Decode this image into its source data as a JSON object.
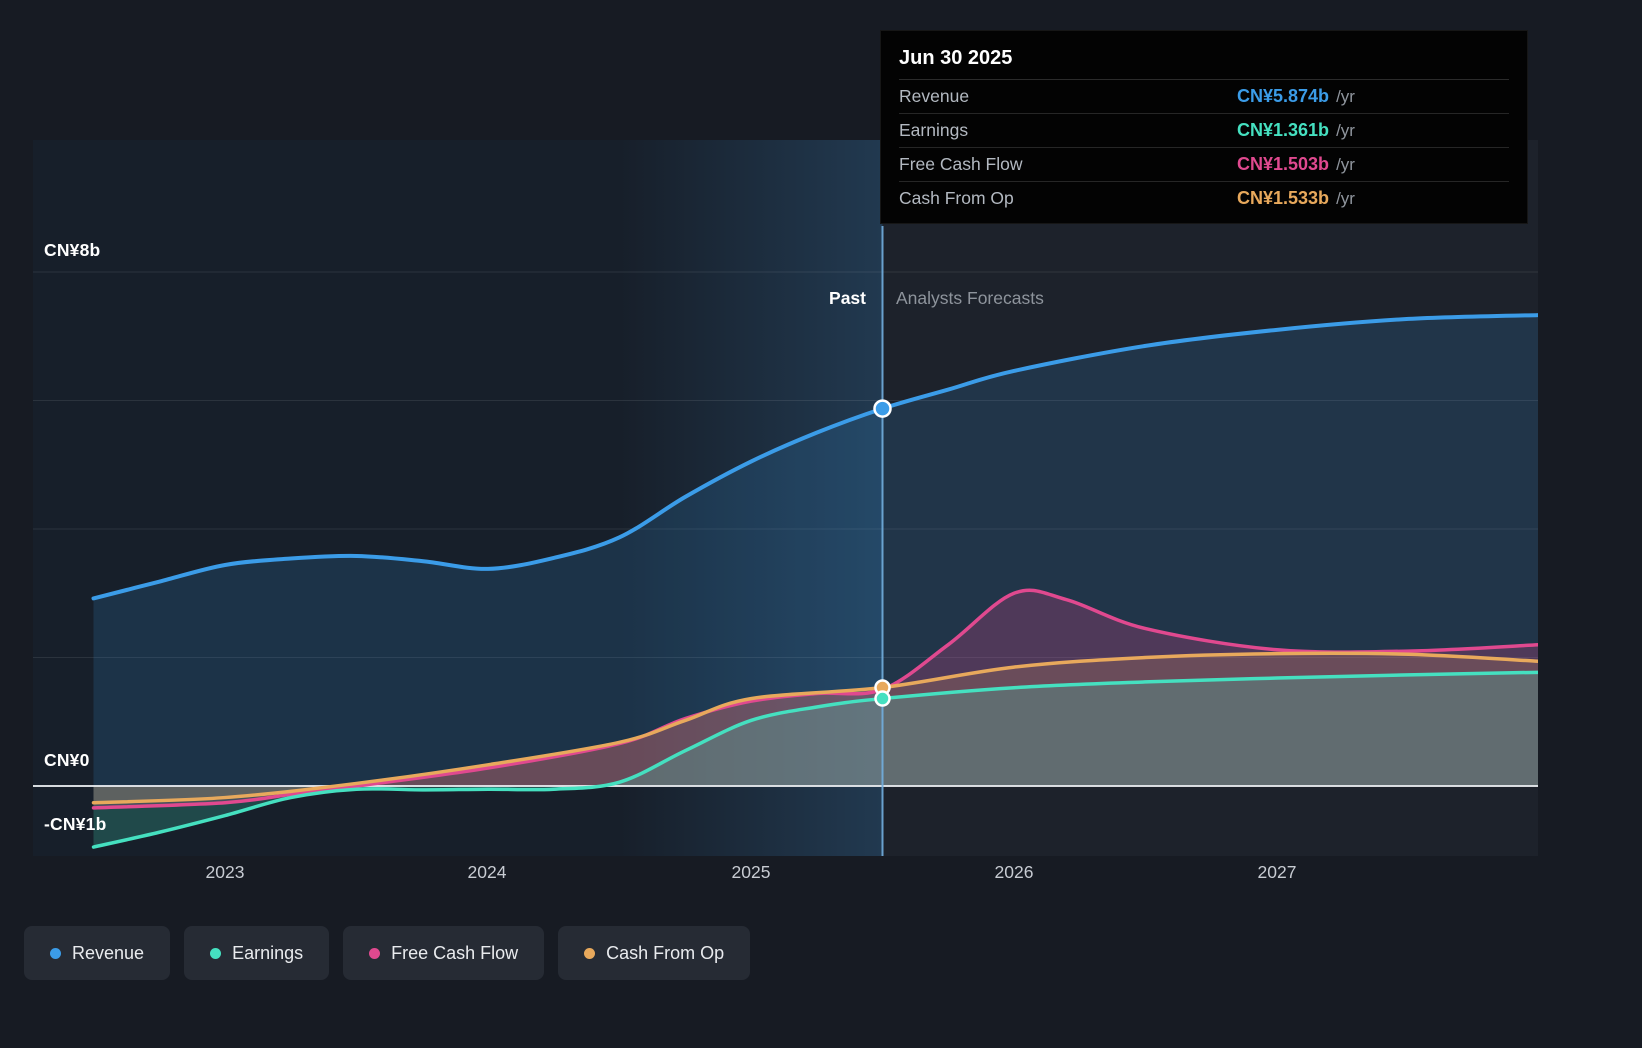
{
  "tooltip": {
    "date": "Jun 30 2025",
    "rows": [
      {
        "label": "Revenue",
        "value": "CN¥5.874b",
        "suffix": "/yr",
        "color": "#3b9ce8"
      },
      {
        "label": "Earnings",
        "value": "CN¥1.361b",
        "suffix": "/yr",
        "color": "#45e0c0"
      },
      {
        "label": "Free Cash Flow",
        "value": "CN¥1.503b",
        "suffix": "/yr",
        "color": "#e0498f"
      },
      {
        "label": "Cash From Op",
        "value": "CN¥1.533b",
        "suffix": "/yr",
        "color": "#e8a95c"
      }
    ]
  },
  "labels": {
    "past": "Past",
    "forecast": "Analysts Forecasts"
  },
  "y_axis": [
    {
      "text": "CN¥8b",
      "value": 8
    },
    {
      "text": "CN¥0",
      "value": 0
    },
    {
      "text": "-CN¥1b",
      "value": -1
    }
  ],
  "x_axis": [
    {
      "text": "2023"
    },
    {
      "text": "2024"
    },
    {
      "text": "2025"
    },
    {
      "text": "2026"
    },
    {
      "text": "2027"
    }
  ],
  "legend": [
    {
      "label": "Revenue",
      "color": "#3b9ce8"
    },
    {
      "label": "Earnings",
      "color": "#45e0c0"
    },
    {
      "label": "Free Cash Flow",
      "color": "#e0498f"
    },
    {
      "label": "Cash From Op",
      "color": "#e8a95c"
    }
  ],
  "chart_data": {
    "type": "line",
    "x_unit": "year",
    "currency": "CN¥ billions",
    "xlim": [
      2022.45,
      2028.0
    ],
    "ylim": [
      -1.35,
      8.7
    ],
    "x_ticks": [
      2023,
      2024,
      2025,
      2026,
      2027
    ],
    "gridlines_y": [
      8,
      6,
      4,
      2
    ],
    "zero_line": 0,
    "divider_x": 2025.5,
    "past_band_start": 2024.5,
    "legend_position": "bottom-left",
    "series": [
      {
        "name": "Revenue",
        "color": "#3b9ce8",
        "fill_opacity": 0.16,
        "width": 4,
        "points": [
          [
            2022.5,
            2.92
          ],
          [
            2022.75,
            3.18
          ],
          [
            2023.0,
            3.44
          ],
          [
            2023.25,
            3.54
          ],
          [
            2023.5,
            3.58
          ],
          [
            2023.75,
            3.5
          ],
          [
            2024.0,
            3.38
          ],
          [
            2024.25,
            3.55
          ],
          [
            2024.5,
            3.87
          ],
          [
            2024.75,
            4.5
          ],
          [
            2025.0,
            5.05
          ],
          [
            2025.25,
            5.5
          ],
          [
            2025.5,
            5.874
          ],
          [
            2025.75,
            6.17
          ],
          [
            2026.0,
            6.46
          ],
          [
            2026.5,
            6.85
          ],
          [
            2027.0,
            7.1
          ],
          [
            2027.5,
            7.27
          ],
          [
            2028.0,
            7.33
          ]
        ]
      },
      {
        "name": "Free Cash Flow",
        "color": "#e0498f",
        "fill_opacity": 0.24,
        "width": 3.5,
        "points": [
          [
            2022.5,
            -0.34
          ],
          [
            2023.0,
            -0.26
          ],
          [
            2023.25,
            -0.13
          ],
          [
            2023.5,
            0.0
          ],
          [
            2024.0,
            0.28
          ],
          [
            2024.5,
            0.66
          ],
          [
            2024.75,
            1.05
          ],
          [
            2025.0,
            1.32
          ],
          [
            2025.25,
            1.44
          ],
          [
            2025.5,
            1.503
          ],
          [
            2025.75,
            2.2
          ],
          [
            2026.0,
            3.0
          ],
          [
            2026.2,
            2.9
          ],
          [
            2026.5,
            2.45
          ],
          [
            2027.0,
            2.12
          ],
          [
            2027.5,
            2.1
          ],
          [
            2028.0,
            2.2
          ]
        ]
      },
      {
        "name": "Cash From Op",
        "color": "#e8a95c",
        "fill_opacity": 0.18,
        "width": 3.5,
        "points": [
          [
            2022.5,
            -0.26
          ],
          [
            2023.0,
            -0.18
          ],
          [
            2023.5,
            0.04
          ],
          [
            2024.0,
            0.33
          ],
          [
            2024.5,
            0.68
          ],
          [
            2024.75,
            1.02
          ],
          [
            2025.0,
            1.36
          ],
          [
            2025.5,
            1.533
          ],
          [
            2026.0,
            1.85
          ],
          [
            2026.5,
            2.0
          ],
          [
            2027.0,
            2.06
          ],
          [
            2027.5,
            2.05
          ],
          [
            2028.0,
            1.94
          ]
        ]
      },
      {
        "name": "Earnings",
        "color": "#45e0c0",
        "fill_opacity": 0.22,
        "width": 3.5,
        "points": [
          [
            2022.5,
            -0.95
          ],
          [
            2022.75,
            -0.72
          ],
          [
            2023.0,
            -0.46
          ],
          [
            2023.25,
            -0.18
          ],
          [
            2023.5,
            -0.05
          ],
          [
            2023.75,
            -0.06
          ],
          [
            2024.0,
            -0.05
          ],
          [
            2024.25,
            -0.05
          ],
          [
            2024.5,
            0.06
          ],
          [
            2024.75,
            0.55
          ],
          [
            2025.0,
            1.02
          ],
          [
            2025.25,
            1.23
          ],
          [
            2025.5,
            1.361
          ],
          [
            2026.0,
            1.53
          ],
          [
            2026.5,
            1.62
          ],
          [
            2027.0,
            1.68
          ],
          [
            2027.5,
            1.73
          ],
          [
            2028.0,
            1.77
          ]
        ]
      }
    ],
    "markers": [
      {
        "series": "Revenue",
        "x": 2025.5,
        "y": 5.874
      },
      {
        "series": "Cash From Op",
        "x": 2025.5,
        "y": 1.533
      },
      {
        "series": "Earnings",
        "x": 2025.5,
        "y": 1.361
      }
    ]
  }
}
